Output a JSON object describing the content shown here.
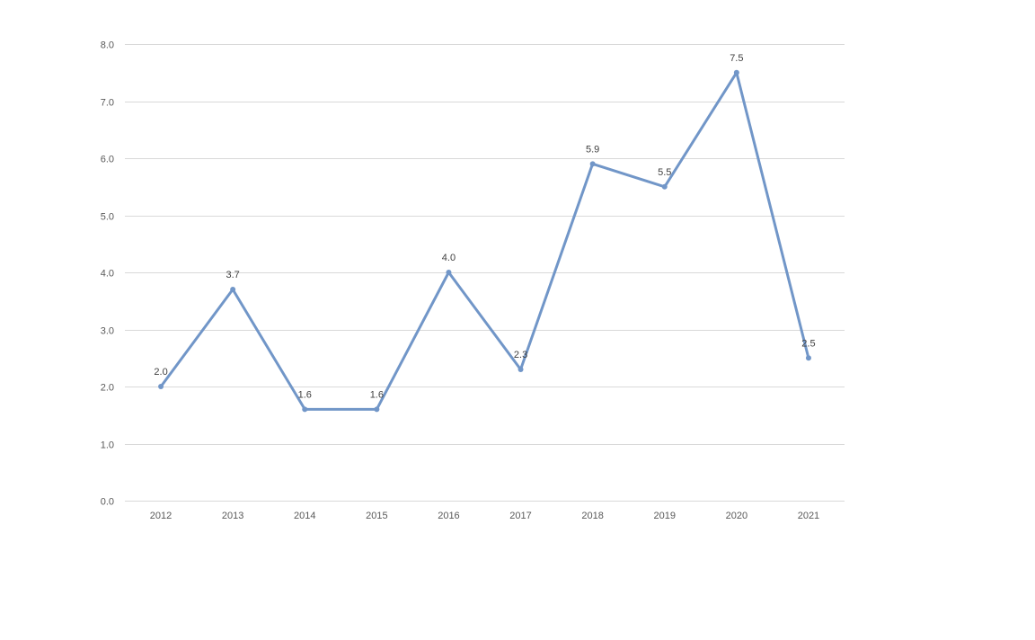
{
  "chart_data": {
    "type": "line",
    "title": "",
    "xlabel": "",
    "ylabel": "",
    "categories": [
      "2012",
      "2013",
      "2014",
      "2015",
      "2016",
      "2017",
      "2018",
      "2019",
      "2020",
      "2021"
    ],
    "series": [
      {
        "values": [
          2.0,
          3.7,
          1.6,
          1.6,
          4.0,
          2.3,
          5.9,
          5.5,
          7.5,
          2.5
        ],
        "data_labels": [
          "2.0",
          "3.7",
          "1.6",
          "1.6",
          "4.0",
          "2.3",
          "5.9",
          "5.5",
          "7.5",
          "2.5"
        ],
        "color": "#7196c8"
      }
    ],
    "ylim": [
      0,
      8
    ],
    "yticks": [
      "0.0",
      "1.0",
      "2.0",
      "3.0",
      "4.0",
      "5.0",
      "6.0",
      "7.0",
      "8.0"
    ],
    "grid": true,
    "legend": "none"
  }
}
